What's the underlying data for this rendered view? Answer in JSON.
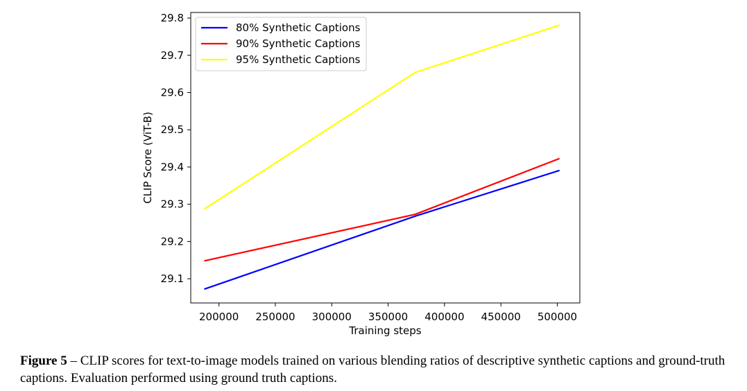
{
  "chart_data": {
    "type": "line",
    "xlabel": "Training steps",
    "ylabel": "CLIP Score (ViT-B)",
    "xlim": [
      175000,
      520000
    ],
    "ylim": [
      29.035,
      29.815
    ],
    "xticks": [
      200000,
      250000,
      300000,
      350000,
      400000,
      450000,
      500000
    ],
    "yticks": [
      29.1,
      29.2,
      29.3,
      29.4,
      29.5,
      29.6,
      29.7,
      29.8
    ],
    "xtick_labels": [
      "200000",
      "250000",
      "300000",
      "350000",
      "400000",
      "450000",
      "500000"
    ],
    "ytick_labels": [
      "29.1",
      "29.2",
      "29.3",
      "29.4",
      "29.5",
      "29.6",
      "29.7",
      "29.8"
    ],
    "legend_position": "top-left",
    "grid": false,
    "series": [
      {
        "name": "80% Synthetic Captions",
        "color": "#0000ff",
        "x": [
          187000,
          374000,
          502000
        ],
        "y": [
          29.072,
          29.268,
          29.391
        ]
      },
      {
        "name": "90% Synthetic Captions",
        "color": "#ff0000",
        "x": [
          187000,
          374000,
          502000
        ],
        "y": [
          29.148,
          29.273,
          29.423
        ]
      },
      {
        "name": "95% Synthetic Captions",
        "color": "#ffff00",
        "x": [
          187000,
          374000,
          502000
        ],
        "y": [
          29.287,
          29.654,
          29.781
        ]
      }
    ]
  },
  "caption": {
    "label": "Figure 5",
    "text": " – CLIP scores for text-to-image models trained on various blending ratios of descriptive synthetic captions and ground-truth captions. Evaluation performed using ground truth captions."
  }
}
